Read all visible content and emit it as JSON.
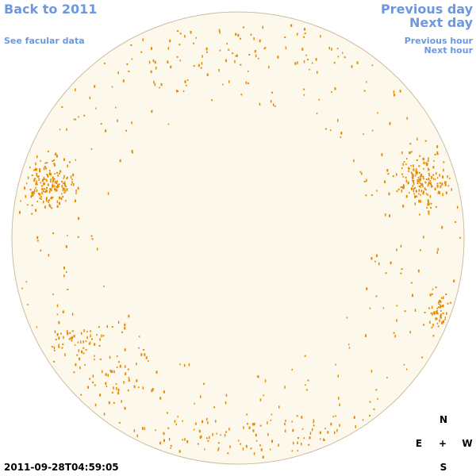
{
  "nav": {
    "back": "Back to 2011",
    "facular": "See facular data",
    "previous_day": "Previous day",
    "next_day": "Next day",
    "previous_hour": "Previous hour",
    "next_hour": "Next hour"
  },
  "timestamp": "2011-09-28T04:59:05",
  "compass": {
    "north": "N",
    "east": "E",
    "center": "+",
    "west": "W",
    "south": "S"
  }
}
